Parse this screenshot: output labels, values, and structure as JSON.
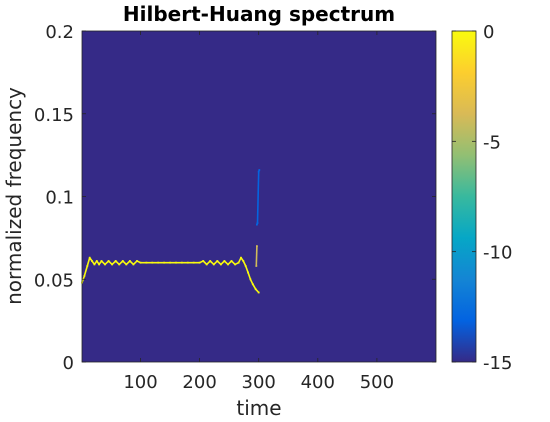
{
  "chart_data": {
    "type": "heatmap",
    "title": "Hilbert-Huang spectrum",
    "xlabel": "time",
    "ylabel": "normalized frequency",
    "xlim": [
      1,
      600
    ],
    "ylim": [
      0,
      0.2
    ],
    "x_ticks": [
      "100",
      "200",
      "300",
      "400",
      "500"
    ],
    "x_tick_values": [
      100,
      200,
      300,
      400,
      500
    ],
    "y_ticks": [
      "0",
      "0.05",
      "0.1",
      "0.15",
      "0.2"
    ],
    "y_tick_values": [
      0,
      0.05,
      0.1,
      0.15,
      0.2
    ],
    "background_value": -15,
    "colorbar": {
      "limits": [
        -15,
        0
      ],
      "ticks": [
        "0",
        "-5",
        "-10",
        "-15"
      ],
      "tick_values": [
        0,
        -5,
        -10,
        -15
      ],
      "colormap": "parula",
      "colors": [
        "#352a87",
        "#0363e1",
        "#1485d4",
        "#06a7c6",
        "#38b99e",
        "#92bf73",
        "#d9ba56",
        "#fcce2e",
        "#f9fb0e"
      ]
    },
    "series": [
      {
        "value": 0,
        "points": [
          [
            1,
            0.048
          ],
          [
            5,
            0.052
          ],
          [
            10,
            0.058
          ],
          [
            14,
            0.063
          ],
          [
            18,
            0.061
          ],
          [
            22,
            0.059
          ],
          [
            26,
            0.061
          ],
          [
            30,
            0.059
          ],
          [
            34,
            0.061
          ],
          [
            40,
            0.059
          ],
          [
            46,
            0.061
          ],
          [
            52,
            0.059
          ],
          [
            58,
            0.061
          ],
          [
            64,
            0.059
          ],
          [
            70,
            0.061
          ],
          [
            76,
            0.059
          ],
          [
            82,
            0.061
          ],
          [
            88,
            0.059
          ],
          [
            94,
            0.061
          ],
          [
            100,
            0.06
          ],
          [
            110,
            0.06
          ],
          [
            120,
            0.06
          ],
          [
            130,
            0.06
          ],
          [
            140,
            0.06
          ],
          [
            150,
            0.06
          ],
          [
            160,
            0.06
          ],
          [
            170,
            0.06
          ],
          [
            180,
            0.06
          ],
          [
            190,
            0.06
          ],
          [
            200,
            0.06
          ],
          [
            206,
            0.061
          ],
          [
            212,
            0.059
          ],
          [
            218,
            0.061
          ],
          [
            224,
            0.059
          ],
          [
            230,
            0.061
          ],
          [
            236,
            0.059
          ],
          [
            242,
            0.061
          ],
          [
            248,
            0.059
          ],
          [
            254,
            0.061
          ],
          [
            260,
            0.059
          ],
          [
            266,
            0.06
          ],
          [
            270,
            0.063
          ],
          [
            274,
            0.061
          ],
          [
            278,
            0.058
          ],
          [
            282,
            0.054
          ],
          [
            286,
            0.05
          ],
          [
            290,
            0.047
          ],
          [
            295,
            0.044
          ],
          [
            300,
            0.042
          ]
        ]
      },
      {
        "value": -4,
        "points": [
          [
            296,
            0.058
          ],
          [
            297,
            0.07
          ]
        ]
      },
      {
        "value": -13,
        "points": [
          [
            297,
            0.083
          ],
          [
            298,
            0.084
          ],
          [
            300,
            0.115
          ],
          [
            301,
            0.116
          ]
        ]
      }
    ]
  }
}
